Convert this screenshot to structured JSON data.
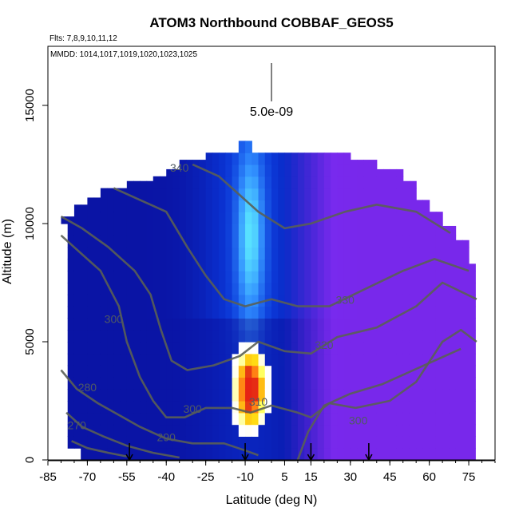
{
  "chart_data": {
    "type": "heatmap",
    "title": "ATOM3 Northbound COBBAF_GEOS5",
    "flights_note": "Flts: 7,8,9,10,11,12",
    "dates_note": "MMDD: 1014,1017,1019,1020,1023,1025",
    "xlabel": "Latitude (deg N)",
    "ylabel": "Altitude (m)",
    "xlim": [
      -85,
      85
    ],
    "ylim": [
      0,
      17500
    ],
    "x_ticks": [
      -85,
      -70,
      -55,
      -40,
      -25,
      -10,
      5,
      15,
      30,
      45,
      60,
      75
    ],
    "y_ticks": [
      0,
      5000,
      10000,
      15000
    ],
    "scale_bar_label": "5.0e-09",
    "arrow_latitudes": [
      -54,
      -10,
      15,
      37
    ],
    "contours": [
      {
        "label": "340",
        "x": -35,
        "y": 12200
      },
      {
        "label": "330",
        "x": 28,
        "y": 6600
      },
      {
        "label": "320",
        "x": 20,
        "y": 4700
      },
      {
        "label": "310",
        "x": -5,
        "y": 2300
      },
      {
        "label": "300",
        "x": -30,
        "y": 2000
      },
      {
        "label": "300",
        "x": -60,
        "y": 5800
      },
      {
        "label": "300",
        "x": 33,
        "y": 1500
      },
      {
        "label": "290",
        "x": -40,
        "y": 800
      },
      {
        "label": "280",
        "x": -70,
        "y": 2900
      },
      {
        "label": "270",
        "x": -74,
        "y": 1300
      }
    ],
    "colors": {
      "southern_background": "#0a14c8",
      "northern_background": "#7828e6",
      "plume_peak": "#e61e1e",
      "contour_line": "#5a5f55"
    }
  }
}
